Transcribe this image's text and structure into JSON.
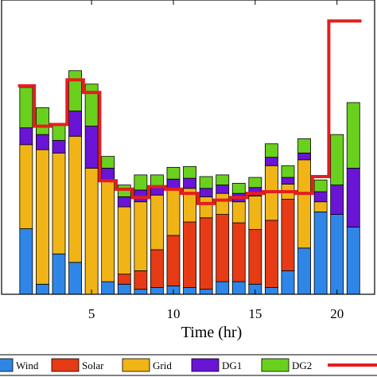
{
  "chart_data": {
    "type": "bar",
    "stacked": true,
    "xlabel": "Time (hr)",
    "ylabel": "",
    "title": "",
    "x": [
      0,
      1,
      2,
      3,
      4,
      5,
      6,
      7,
      8,
      9,
      10,
      11,
      12,
      13,
      14,
      15,
      16,
      17,
      18,
      19,
      20,
      21,
      22
    ],
    "xlim": [
      -0.5,
      22.3
    ],
    "ylim": [
      0,
      350
    ],
    "xticks": [
      5,
      10,
      15,
      20
    ],
    "legend_placement": "bottom",
    "grid": false,
    "series": [
      {
        "name": "Wind",
        "color": "#2f86e6",
        "values": [
          0,
          78,
          12,
          48,
          38,
          0,
          15,
          12,
          6,
          8,
          10,
          8,
          6,
          15,
          15,
          12,
          8,
          28,
          55,
          98,
          95,
          80,
          0
        ]
      },
      {
        "name": "Solar",
        "color": "#e63b14",
        "values": [
          0,
          0,
          0,
          0,
          0,
          0,
          0,
          12,
          22,
          45,
          60,
          78,
          85,
          80,
          70,
          65,
          80,
          85,
          0,
          0,
          0,
          0,
          0
        ]
      },
      {
        "name": "Grid",
        "color": "#f0b416",
        "values": [
          0,
          100,
          160,
          120,
          150,
          150,
          120,
          80,
          82,
          65,
          55,
          40,
          25,
          25,
          25,
          40,
          65,
          18,
          105,
          12,
          0,
          0,
          0
        ]
      },
      {
        "name": "DG1",
        "color": "#6a14d6",
        "values": [
          0,
          20,
          18,
          15,
          30,
          50,
          15,
          12,
          14,
          10,
          12,
          12,
          10,
          10,
          10,
          10,
          10,
          8,
          8,
          12,
          35,
          70,
          0
        ]
      },
      {
        "name": "DG2",
        "color": "#6ad01e",
        "values": [
          0,
          48,
          32,
          20,
          48,
          50,
          14,
          14,
          18,
          14,
          14,
          14,
          14,
          12,
          12,
          12,
          16,
          14,
          17,
          14,
          60,
          78,
          0
        ]
      }
    ],
    "demand": {
      "color": "#e41e1e",
      "values": [
        0,
        248,
        200,
        202,
        255,
        240,
        135,
        125,
        115,
        128,
        125,
        120,
        108,
        112,
        115,
        120,
        122,
        122,
        120,
        140,
        325,
        325,
        0
      ]
    },
    "legend": [
      {
        "label": "Wind",
        "color": "#2f86e6"
      },
      {
        "label": "Solar",
        "color": "#e63b14"
      },
      {
        "label": "Grid",
        "color": "#f0b416"
      },
      {
        "label": "DG1",
        "color": "#6a14d6"
      },
      {
        "label": "DG2",
        "color": "#6ad01e"
      },
      {
        "label": "",
        "color": "#e41e1e",
        "type": "line"
      }
    ]
  }
}
